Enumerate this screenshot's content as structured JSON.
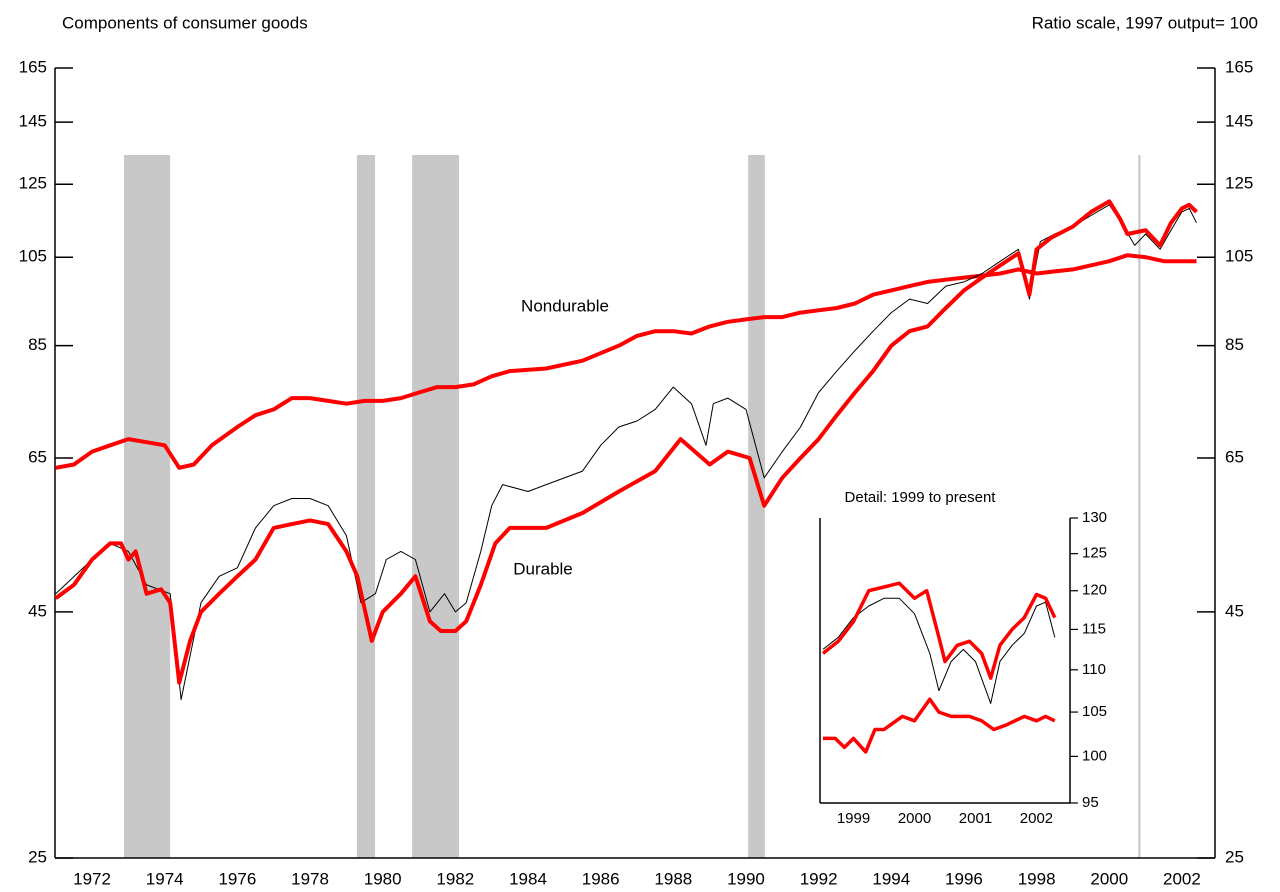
{
  "header": {
    "left": "Components of consumer goods",
    "right": "Ratio scale, 1997 output= 100"
  },
  "chart_data": [
    {
      "type": "line",
      "log_scale": true,
      "xlim": [
        1971.48,
        2003.41
      ],
      "ylim": [
        25,
        165
      ],
      "xticks": [
        {
          "value": 1972.5,
          "label": "1972"
        },
        {
          "value": 1974.5,
          "label": "1974"
        },
        {
          "value": 1976.5,
          "label": "1976"
        },
        {
          "value": 1978.5,
          "label": "1978"
        },
        {
          "value": 1980.5,
          "label": "1980"
        },
        {
          "value": 1982.5,
          "label": "1982"
        },
        {
          "value": 1984.5,
          "label": "1984"
        },
        {
          "value": 1986.5,
          "label": "1986"
        },
        {
          "value": 1988.5,
          "label": "1988"
        },
        {
          "value": 1990.5,
          "label": "1990"
        },
        {
          "value": 1992.5,
          "label": "1992"
        },
        {
          "value": 1994.5,
          "label": "1994"
        },
        {
          "value": 1996.5,
          "label": "1996"
        },
        {
          "value": 1998.5,
          "label": "1998"
        },
        {
          "value": 2000.5,
          "label": "2000"
        },
        {
          "value": 2002.5,
          "label": "2002"
        }
      ],
      "yticks": [
        25,
        45,
        65,
        85,
        105,
        125,
        145,
        165
      ],
      "shaded_periods": [
        [
          1973.38,
          1974.65
        ],
        [
          1979.79,
          1980.29
        ],
        [
          1981.31,
          1982.6
        ],
        [
          1990.56,
          1991.02
        ],
        [
          2001.3,
          2001.36
        ]
      ],
      "shade_color": "#c8c8c8",
      "series": [
        {
          "name": "Nondurable",
          "color": "#ff0000",
          "line_width": 4,
          "x": [
            1971.5,
            1972.0,
            1972.5,
            1973.0,
            1973.5,
            1974.0,
            1974.5,
            1974.9,
            1975.3,
            1975.8,
            1976.5,
            1977.0,
            1977.5,
            1978.0,
            1978.5,
            1979.0,
            1979.5,
            1980.0,
            1980.5,
            1981.0,
            1981.5,
            1982.0,
            1982.5,
            1983.0,
            1983.5,
            1984.0,
            1985.0,
            1986.0,
            1987.0,
            1987.5,
            1988.0,
            1988.5,
            1989.0,
            1989.5,
            1990.0,
            1990.5,
            1991.0,
            1991.5,
            1992.0,
            1992.5,
            1993.0,
            1993.5,
            1994.0,
            1994.5,
            1995.0,
            1995.5,
            1996.0,
            1996.5,
            1997.0,
            1997.5,
            1998.0,
            1998.5,
            1999.0,
            1999.5,
            2000.0,
            2000.5,
            2001.0,
            2001.5,
            2002.0,
            2002.5,
            2002.9
          ],
          "values": [
            63.5,
            64,
            66,
            67,
            68,
            67.5,
            67,
            63.5,
            64,
            67,
            70,
            72,
            73,
            75,
            75,
            74.5,
            74,
            74.5,
            74.5,
            75,
            76,
            77,
            77,
            77.5,
            79,
            80,
            80.5,
            82,
            85,
            87,
            88,
            88,
            87.5,
            89,
            90,
            90.5,
            91,
            91,
            92,
            92.5,
            93,
            94,
            96,
            97,
            98,
            99,
            99.5,
            100,
            100.5,
            101,
            102,
            101,
            101.5,
            102,
            103,
            104,
            105.5,
            105,
            104,
            104,
            104
          ]
        },
        {
          "color": "#000000",
          "line_width": 1,
          "x": [
            1971.5,
            1972.5,
            1973.0,
            1973.5,
            1974.0,
            1974.65,
            1974.95,
            1975.5,
            1976.0,
            1976.5,
            1977.0,
            1977.5,
            1978.0,
            1978.5,
            1979.0,
            1979.5,
            1979.9,
            1980.3,
            1980.6,
            1981.0,
            1981.4,
            1981.8,
            1982.2,
            1982.5,
            1982.8,
            1983.2,
            1983.5,
            1983.8,
            1984.5,
            1985.0,
            1986.0,
            1986.5,
            1987.0,
            1987.5,
            1988.0,
            1988.5,
            1989.0,
            1989.4,
            1989.6,
            1990.0,
            1990.5,
            1991.0,
            1991.5,
            1992.0,
            1992.5,
            1993.0,
            1993.5,
            1994.0,
            1994.5,
            1995.0,
            1995.5,
            1996.0,
            1996.5,
            1997.0,
            1997.5,
            1998.0,
            1998.3,
            1998.6,
            1999.0,
            1999.5,
            2000.0,
            2000.5,
            2000.9,
            2001.2,
            2001.5,
            2001.9,
            2002.2,
            2002.5,
            2002.7,
            2002.9
          ],
          "values": [
            47,
            51,
            53,
            52,
            48,
            47,
            36.5,
            46,
            49,
            50,
            55,
            58,
            59,
            59,
            58,
            54,
            46,
            47,
            51,
            52,
            51,
            45,
            47,
            45,
            46,
            52,
            58,
            61,
            60,
            61,
            63,
            67,
            70,
            71,
            73,
            77,
            74,
            67,
            74,
            75,
            73,
            62,
            66,
            70,
            76,
            80,
            84,
            88,
            92,
            95,
            94,
            98,
            99,
            101,
            104,
            107,
            95,
            109,
            111,
            113,
            116,
            119,
            113,
            108,
            111,
            107,
            112,
            117,
            118,
            114
          ]
        },
        {
          "name": "Durable",
          "color": "#ff0000",
          "line_width": 4,
          "x": [
            1971.5,
            1972.0,
            1972.5,
            1973.0,
            1973.3,
            1973.5,
            1973.7,
            1974.0,
            1974.4,
            1974.65,
            1974.9,
            1975.2,
            1975.5,
            1976.0,
            1976.5,
            1977.0,
            1977.5,
            1978.0,
            1978.5,
            1979.0,
            1979.5,
            1979.8,
            1980.2,
            1980.5,
            1981.0,
            1981.4,
            1981.8,
            1982.1,
            1982.5,
            1982.8,
            1983.2,
            1983.6,
            1984.0,
            1985.0,
            1986.0,
            1987.0,
            1988.0,
            1988.7,
            1989.5,
            1990.0,
            1990.6,
            1991.0,
            1991.5,
            1992.0,
            1992.5,
            1993.0,
            1993.5,
            1994.0,
            1994.5,
            1995.0,
            1995.5,
            1996.0,
            1996.5,
            1997.0,
            1997.5,
            1998.0,
            1998.3,
            1998.5,
            1998.9,
            1999.5,
            2000.0,
            2000.5,
            2000.8,
            2001.0,
            2001.5,
            2001.9,
            2002.2,
            2002.5,
            2002.7,
            2002.9
          ],
          "values": [
            46.5,
            48,
            51,
            53,
            53,
            51,
            52,
            47,
            47.5,
            46,
            38,
            42,
            45,
            47,
            49,
            51,
            55,
            55.5,
            56,
            55.5,
            52,
            49,
            42,
            45,
            47,
            49,
            44,
            43,
            43,
            44,
            48,
            53,
            55,
            55,
            57,
            60,
            63,
            68,
            64,
            66,
            65,
            58,
            62,
            65,
            68,
            72,
            76,
            80,
            85,
            88,
            89,
            93,
            97,
            100,
            103,
            106,
            96,
            107,
            110,
            113,
            117,
            120,
            115,
            111,
            112,
            108,
            114,
            118,
            119,
            117
          ]
        }
      ]
    },
    {
      "type": "line",
      "log_scale": true,
      "title": "Detail: 1999 to present",
      "xlim": [
        1998.95,
        2003.05
      ],
      "ylim": [
        95,
        130
      ],
      "xticks": [
        {
          "value": 1999.5,
          "label": "1999"
        },
        {
          "value": 2000.5,
          "label": "2000"
        },
        {
          "value": 2001.5,
          "label": "2001"
        },
        {
          "value": 2002.5,
          "label": "2002"
        }
      ],
      "yticks": [
        95,
        100,
        105,
        110,
        115,
        120,
        125,
        130
      ],
      "series": [
        {
          "color": "#000000",
          "line_width": 1,
          "x": [
            1999.0,
            1999.25,
            1999.5,
            1999.75,
            2000.0,
            2000.25,
            2000.5,
            2000.75,
            2000.9,
            2001.1,
            2001.3,
            2001.5,
            2001.75,
            2001.9,
            2002.1,
            2002.3,
            2002.5,
            2002.65,
            2002.8
          ],
          "values": [
            112.5,
            114,
            116.5,
            118,
            119,
            119,
            117,
            112,
            107.5,
            111,
            112.5,
            111,
            106,
            111,
            113,
            114.5,
            118,
            118.5,
            114
          ]
        },
        {
          "color": "#ff0000",
          "line_width": 3.5,
          "x": [
            1999.0,
            1999.25,
            1999.5,
            1999.75,
            2000.0,
            2000.25,
            2000.5,
            2000.7,
            2000.9,
            2001.0,
            2001.2,
            2001.4,
            2001.6,
            2001.75,
            2001.9,
            2002.1,
            2002.3,
            2002.5,
            2002.65,
            2002.8
          ],
          "values": [
            112,
            113.5,
            116,
            120,
            120.5,
            121,
            119,
            120,
            114,
            111,
            113,
            113.5,
            112,
            109,
            113,
            115,
            116.5,
            119.5,
            119,
            116.5
          ]
        },
        {
          "color": "#ff0000",
          "line_width": 3.5,
          "x": [
            1999.0,
            1999.2,
            1999.35,
            1999.5,
            1999.7,
            1999.85,
            2000.0,
            2000.3,
            2000.5,
            2000.75,
            2000.9,
            2001.1,
            2001.4,
            2001.6,
            2001.8,
            2002.0,
            2002.3,
            2002.5,
            2002.65,
            2002.8
          ],
          "values": [
            102,
            102,
            101,
            102,
            100.5,
            103,
            103,
            104.5,
            104,
            106.5,
            105,
            104.5,
            104.5,
            104,
            103,
            103.5,
            104.5,
            104,
            104.5,
            104
          ]
        }
      ]
    }
  ]
}
